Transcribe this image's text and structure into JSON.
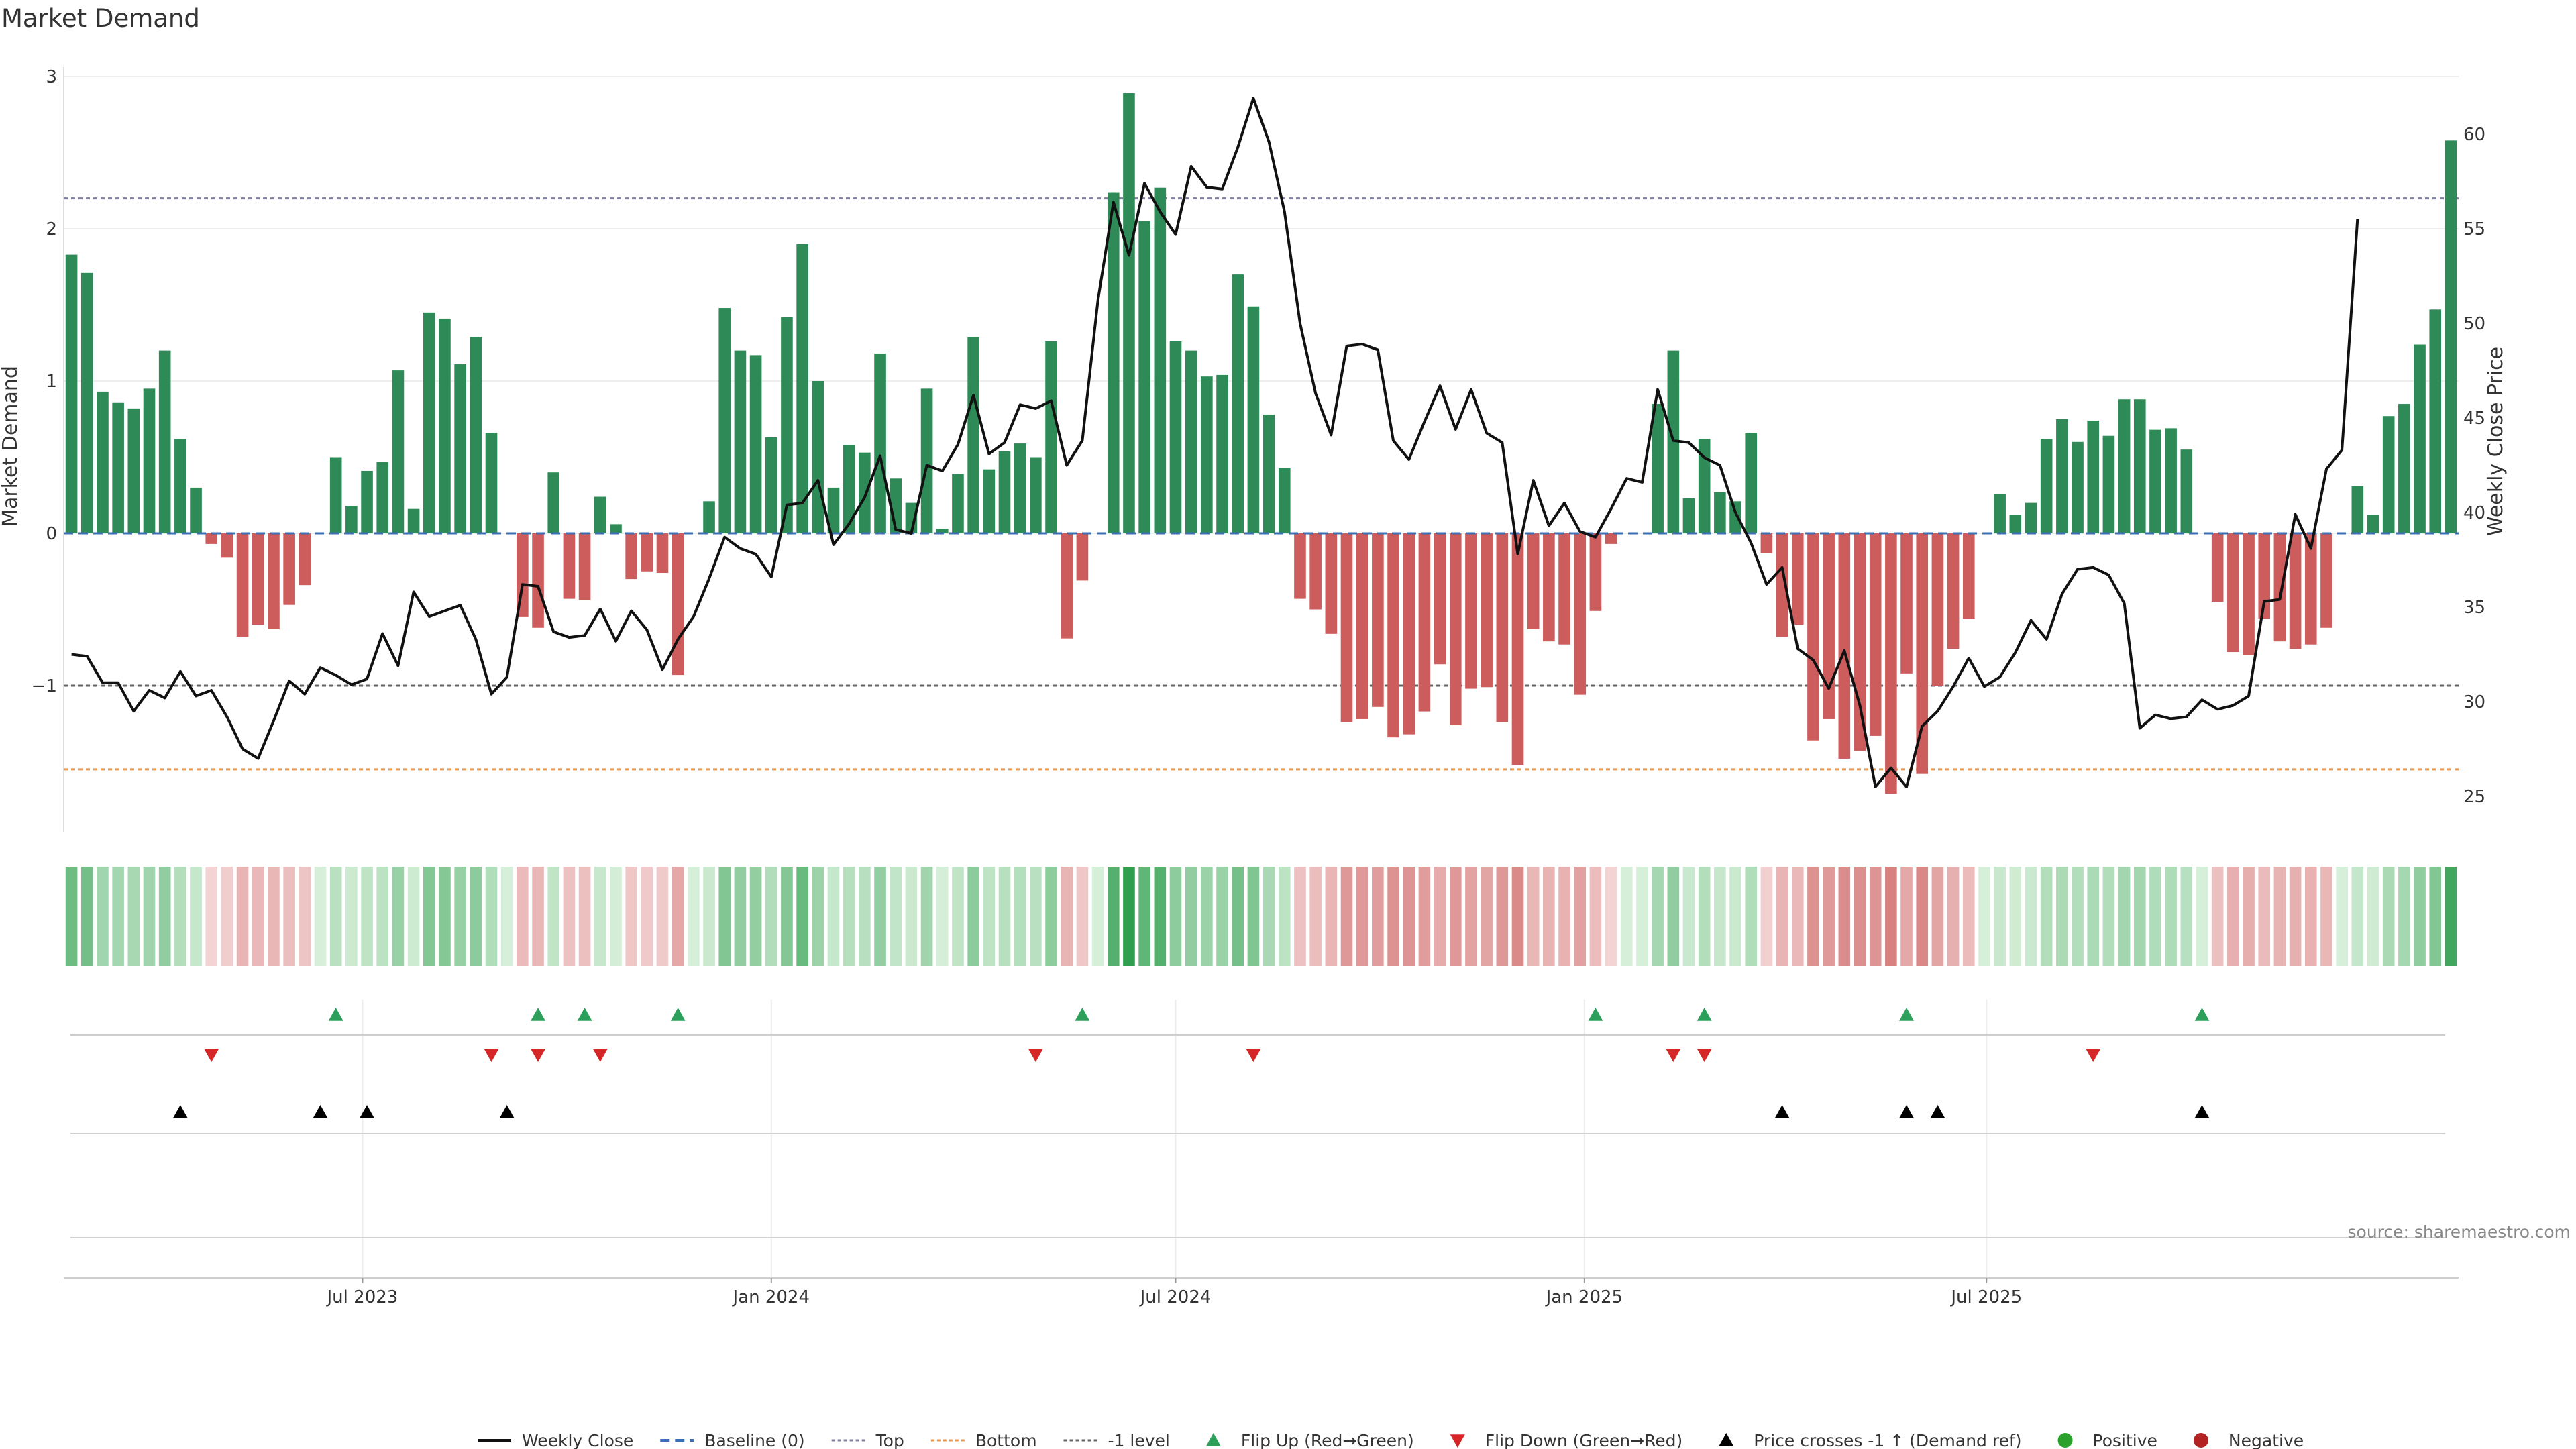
{
  "chart_data": {
    "type": "bar",
    "title": "Market Demand",
    "ylabel": "Market Demand",
    "y2label": "Weekly Close Price",
    "ylim": [
      -1.95,
      3.0
    ],
    "y2lim": [
      23,
      63
    ],
    "yticks": [
      "3",
      "2",
      "1",
      "0",
      "−1"
    ],
    "yticks_values": [
      3,
      2,
      1,
      0,
      -1
    ],
    "y2ticks": [
      "60",
      "55",
      "50",
      "45",
      "40",
      "35",
      "30",
      "25"
    ],
    "y2ticks_values": [
      60,
      55,
      50,
      45,
      40,
      35,
      30,
      25
    ],
    "x_start": "2023-02-20",
    "x_step_days": 7,
    "xticks": [
      "Jul 2023",
      "Jan 2024",
      "Jul 2024",
      "Jan 2025",
      "Jul 2025"
    ],
    "xticks_dates": [
      "2023-07-01",
      "2024-01-01",
      "2024-07-01",
      "2025-01-01",
      "2025-07-01"
    ],
    "reference_lines": [
      {
        "name": "Top",
        "value": 2.2,
        "color": "#7f7f9f"
      },
      {
        "name": "Bottom",
        "value": -1.55,
        "color": "#e8954a"
      },
      {
        "name": "-1 level",
        "value": -1.0,
        "color": "#666666"
      }
    ],
    "demand": [
      1.83,
      1.71,
      0.93,
      0.86,
      0.82,
      0.95,
      1.2,
      0.62,
      0.3,
      -0.07,
      -0.16,
      -0.68,
      -0.6,
      -0.63,
      -0.47,
      -0.34,
      0.0,
      0.5,
      0.18,
      0.41,
      0.47,
      1.07,
      0.16,
      1.45,
      1.41,
      1.11,
      1.29,
      0.66,
      0.0,
      -0.55,
      -0.62,
      0.4,
      -0.43,
      -0.44,
      0.24,
      0.06,
      -0.3,
      -0.25,
      -0.26,
      -0.93,
      0.0,
      0.21,
      1.48,
      1.2,
      1.17,
      0.63,
      1.42,
      1.9,
      1.0,
      0.3,
      0.58,
      0.53,
      1.18,
      0.36,
      0.2,
      0.95,
      0.03,
      0.39,
      1.29,
      0.42,
      0.54,
      0.59,
      0.5,
      1.26,
      -0.69,
      -0.31,
      0.0,
      2.24,
      2.89,
      2.05,
      2.27,
      1.26,
      1.2,
      1.03,
      1.04,
      1.7,
      1.49,
      0.78,
      0.43,
      -0.43,
      -0.5,
      -0.66,
      -1.24,
      -1.22,
      -1.14,
      -1.34,
      -1.32,
      -1.17,
      -0.86,
      -1.26,
      -1.02,
      -1.01,
      -1.24,
      -1.52,
      -0.63,
      -0.71,
      -0.73,
      -1.06,
      -0.51,
      -0.07,
      0.0,
      0.0,
      0.85,
      1.2,
      0.23,
      0.62,
      0.27,
      0.21,
      0.66,
      -0.13,
      -0.68,
      -0.6,
      -1.36,
      -1.22,
      -1.48,
      -1.43,
      -1.33,
      -1.71,
      -0.92,
      -1.58,
      -1.0,
      -0.76,
      -0.56,
      0.0,
      0.26,
      0.12,
      0.2,
      0.62,
      0.75,
      0.6,
      0.74,
      0.64,
      0.88,
      0.88,
      0.68,
      0.69,
      0.55,
      0.0,
      -0.45,
      -0.78,
      -0.8,
      -0.56,
      -0.71,
      -0.76,
      -0.73,
      -0.62,
      0.0,
      0.31,
      0.12,
      0.77,
      0.85,
      1.24,
      1.47,
      2.58
    ],
    "price": [
      32.5,
      32.4,
      31.0,
      31.0,
      29.5,
      30.6,
      30.2,
      31.6,
      30.3,
      30.6,
      29.2,
      27.5,
      27.0,
      29.0,
      31.1,
      30.4,
      31.8,
      31.4,
      30.9,
      31.2,
      33.6,
      31.9,
      35.8,
      34.5,
      34.8,
      35.1,
      33.3,
      30.4,
      31.3,
      36.2,
      36.1,
      33.7,
      33.4,
      33.5,
      34.9,
      33.2,
      34.8,
      33.8,
      31.7,
      33.3,
      34.5,
      36.5,
      38.7,
      38.1,
      37.8,
      36.6,
      40.4,
      40.5,
      41.7,
      38.3,
      39.4,
      40.8,
      43.0,
      39.1,
      38.9,
      42.5,
      42.2,
      43.6,
      46.2,
      43.1,
      43.7,
      45.7,
      45.5,
      45.9,
      42.5,
      43.8,
      51.2,
      56.4,
      53.6,
      57.4,
      55.9,
      54.7,
      58.3,
      57.2,
      57.1,
      59.3,
      61.9,
      59.6,
      55.9,
      50.0,
      46.3,
      44.1,
      48.8,
      48.9,
      48.6,
      43.8,
      42.8,
      44.8,
      46.7,
      44.4,
      46.5,
      44.2,
      43.7,
      37.8,
      41.7,
      39.3,
      40.5,
      39.0,
      38.7,
      40.2,
      41.8,
      41.6,
      46.5,
      43.8,
      43.7,
      42.9,
      42.5,
      40.0,
      38.4,
      36.2,
      37.1,
      32.8,
      32.2,
      30.7,
      32.7,
      29.8,
      25.5,
      26.5,
      25.5,
      28.7,
      29.5,
      30.8,
      32.3,
      30.8,
      31.3,
      32.6,
      34.3,
      33.3,
      35.7,
      37.0,
      37.1,
      36.7,
      35.2,
      28.6,
      29.3,
      29.1,
      29.2,
      30.1,
      29.6,
      29.8,
      30.3,
      35.3,
      35.4,
      39.9,
      38.1,
      42.3,
      43.3,
      55.5
    ],
    "flip_up_indices": [
      17,
      30,
      33,
      39,
      65,
      98,
      105,
      118,
      137
    ],
    "flip_down_indices": [
      9,
      27,
      30,
      34,
      62,
      76,
      103,
      105,
      130
    ],
    "price_cross_indices": [
      7,
      16,
      19,
      28,
      110,
      118,
      120,
      137
    ],
    "source_text": "source: sharemaestro.com",
    "legend": [
      {
        "label": "Weekly Close",
        "kind": "solid",
        "color": "#111111"
      },
      {
        "label": "Baseline (0)",
        "kind": "dash",
        "color": "#3b6fb6"
      },
      {
        "label": "Top",
        "kind": "dot",
        "color": "#7f7f9f"
      },
      {
        "label": "Bottom",
        "kind": "dot",
        "color": "#e8954a"
      },
      {
        "label": "-1 level",
        "kind": "dot",
        "color": "#666666"
      },
      {
        "label": "Flip Up (Red→Green)",
        "kind": "tri-up",
        "color": "#2ca05a"
      },
      {
        "label": "Flip Down (Green→Red)",
        "kind": "tri-down",
        "color": "#d62728"
      },
      {
        "label": "Price crosses -1 ↑ (Demand ref)",
        "kind": "tri-up",
        "color": "#000000"
      },
      {
        "label": "Positive",
        "kind": "circle",
        "color": "#2ca02c"
      },
      {
        "label": "Negative",
        "kind": "circle",
        "color": "#b22222"
      }
    ],
    "colors": {
      "positive_bar": "#2e8b57",
      "negative_bar": "#cd5c5c",
      "price_line": "#111111",
      "baseline": "#3b6fb6"
    }
  }
}
